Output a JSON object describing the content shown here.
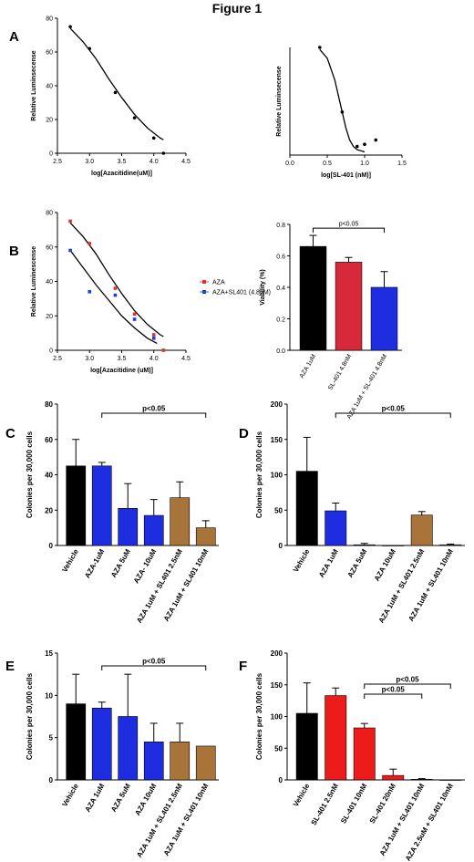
{
  "figure": {
    "title": "Figure 1"
  },
  "panel_letters": [
    "A",
    "B",
    "C",
    "D",
    "E",
    "F"
  ],
  "chart_data": [
    {
      "id": "A1",
      "type": "scatter",
      "xlabel": "log[Azacitidine(uM)]",
      "ylabel": "Relative Luminsecense",
      "xlim": [
        2.5,
        4.5
      ],
      "ylim": [
        0,
        80
      ],
      "xticks": [
        "2.5",
        "3.0",
        "3.5",
        "4.0",
        "4.5"
      ],
      "yticks": [
        "0",
        "20",
        "40",
        "60",
        "80"
      ],
      "series": [
        {
          "color": "#000000",
          "x": [
            2.7,
            3.0,
            3.4,
            3.7,
            4.0,
            4.15
          ],
          "y": [
            75,
            62,
            36,
            21,
            9,
            0
          ],
          "fit_x": [
            2.7,
            2.9,
            3.1,
            3.3,
            3.5,
            3.7,
            3.9,
            4.1,
            4.15
          ],
          "fit_y": [
            74,
            66,
            56,
            44,
            33,
            23,
            15,
            9,
            8
          ]
        }
      ]
    },
    {
      "id": "A2",
      "type": "scatter",
      "xlabel": "log[SL-401 (nM)]",
      "ylabel": "Relative Luminsecense",
      "xlim": [
        0.0,
        1.5
      ],
      "ylim": [
        0,
        100
      ],
      "xticks": [
        "0.0",
        "0.5",
        "1.0",
        "1.5"
      ],
      "series": [
        {
          "color": "#000000",
          "x": [
            0.4,
            0.7,
            0.9,
            1.0,
            1.15
          ],
          "y": [
            100,
            40,
            8,
            10,
            14
          ],
          "fit_x": [
            0.4,
            0.5,
            0.6,
            0.65,
            0.7,
            0.75,
            0.8,
            0.85,
            0.9,
            1.0
          ],
          "fit_y": [
            98,
            90,
            70,
            55,
            40,
            25,
            14,
            8,
            5,
            3
          ]
        }
      ]
    },
    {
      "id": "B1",
      "type": "scatter",
      "xlabel": "log[Azacitidine (uM)]",
      "ylabel": "Relative Luminescense",
      "xlim": [
        2.5,
        4.5
      ],
      "ylim": [
        0,
        80
      ],
      "xticks": [
        "2.5",
        "3.0",
        "3.5",
        "4.0",
        "4.5"
      ],
      "yticks": [
        "0",
        "20",
        "40",
        "60",
        "80"
      ],
      "legend": [
        "AZA",
        "AZA+SL401 (4.8nM)"
      ],
      "series": [
        {
          "name": "AZA",
          "color": "#e03030",
          "x": [
            2.7,
            3.0,
            3.4,
            3.7,
            4.0,
            4.15
          ],
          "y": [
            75,
            62,
            36,
            21,
            9,
            0
          ],
          "fit_x": [
            2.7,
            2.9,
            3.1,
            3.3,
            3.5,
            3.7,
            3.9,
            4.1,
            4.15
          ],
          "fit_y": [
            74,
            66,
            56,
            44,
            33,
            23,
            15,
            9,
            8
          ]
        },
        {
          "name": "AZA+SL401 (4.8nM)",
          "color": "#2040d0",
          "x": [
            2.7,
            3.0,
            3.4,
            3.7,
            4.0
          ],
          "y": [
            58,
            34,
            32,
            18,
            7
          ],
          "fit_x": [
            2.7,
            2.9,
            3.1,
            3.3,
            3.5,
            3.7,
            3.9,
            4.05
          ],
          "fit_y": [
            58,
            48,
            38,
            29,
            20,
            13,
            7,
            4
          ]
        }
      ]
    },
    {
      "id": "B2",
      "type": "bar",
      "ylabel": "Viability (%)",
      "ylim": [
        0,
        0.8
      ],
      "yticks": [
        "0.0",
        "0.2",
        "0.4",
        "0.6",
        "0.8"
      ],
      "categories": [
        "AZA 1uM",
        "SL-401 4.8nM",
        "AZA 1uM + SL-401 4.8nM"
      ],
      "values": [
        0.66,
        0.56,
        0.4
      ],
      "errors": [
        0.07,
        0.03,
        0.1
      ],
      "colors": [
        "#000000",
        "#d62a3a",
        "#1f2de0"
      ],
      "annotations": [
        {
          "text": "p<0.05",
          "from": 0,
          "to": 2
        }
      ]
    },
    {
      "id": "C",
      "type": "bar",
      "ylabel": "Colonies per 30,000 cells",
      "ylim": [
        0,
        80
      ],
      "yticks": [
        "0",
        "20",
        "40",
        "60",
        "80"
      ],
      "categories": [
        "Vehicle",
        "AZA-1uM",
        "AZA 5uM",
        "AZA- 10uM",
        "AZA 1uM + SL401 2.5nM",
        "AZA 1uM + SL401 10nM"
      ],
      "values": [
        45,
        45,
        21,
        17,
        27,
        10
      ],
      "errors": [
        15,
        2,
        14,
        9,
        9,
        4
      ],
      "colors": [
        "#000000",
        "#1f2de0",
        "#1f2de0",
        "#1f2de0",
        "#a8743a",
        "#a8743a"
      ],
      "annotations": [
        {
          "text": "p<0.05",
          "from": 1,
          "to": 5
        }
      ]
    },
    {
      "id": "D",
      "type": "bar",
      "ylabel": "Colonies per 30,000 cells",
      "ylim": [
        0,
        200
      ],
      "yticks": [
        "0",
        "50",
        "100",
        "150",
        "200"
      ],
      "categories": [
        "Vehicle",
        "AZA 1uM",
        "AZA 5uM",
        "AZA 10uM",
        "AZA 1uM + SL401 2.5nM",
        "AZA 1uM + SL401 10nM"
      ],
      "values": [
        105,
        49,
        1,
        0,
        43,
        1
      ],
      "errors": [
        48,
        11,
        2,
        0,
        5,
        1
      ],
      "colors": [
        "#000000",
        "#1f2de0",
        "#1f2de0",
        "#1f2de0",
        "#a8743a",
        "#a8743a"
      ],
      "annotations": [
        {
          "text": "p<0.05",
          "from": 1,
          "to": 5
        }
      ]
    },
    {
      "id": "E",
      "type": "bar",
      "ylabel": "Colonies per 30,000 cells",
      "ylim": [
        0,
        15
      ],
      "yticks": [
        "0",
        "5",
        "10",
        "15"
      ],
      "categories": [
        "Vehicle",
        "AZA 1uM",
        "AZA 5uM",
        "AZA 10uM",
        "AZA 1uM + SL401 2.5nM",
        "AZA 1uM + SL401 10nM"
      ],
      "values": [
        9.0,
        8.5,
        7.5,
        4.5,
        4.5,
        4.0
      ],
      "errors": [
        3.5,
        0.7,
        5.0,
        2.2,
        2.2,
        0
      ],
      "colors": [
        "#000000",
        "#1f2de0",
        "#1f2de0",
        "#1f2de0",
        "#a8743a",
        "#a8743a"
      ],
      "annotations": [
        {
          "text": "p<0.05",
          "from": 1,
          "to": 5
        }
      ]
    },
    {
      "id": "F",
      "type": "bar",
      "ylabel": "Colonies per 30,000 cells",
      "ylim": [
        0,
        200
      ],
      "yticks": [
        "0",
        "50",
        "100",
        "150",
        "200"
      ],
      "categories": [
        "Vehicle",
        "SL-401 2.5nM",
        "SL-401 10nM",
        "SL-401 20nM",
        "AZA 1uM + SL401 10nM",
        "AZA 2.5uM + SL401 10nM"
      ],
      "values": [
        105,
        133,
        82,
        7,
        1,
        0
      ],
      "errors": [
        48,
        12,
        7,
        10,
        1,
        0
      ],
      "colors": [
        "#000000",
        "#ee1b1b",
        "#ee1b1b",
        "#ee1b1b",
        "#a8743a",
        "#a8743a"
      ],
      "annotations": [
        {
          "text": "p<0.05",
          "from": 2,
          "to": 4
        },
        {
          "text": "p<0.05",
          "from": 2,
          "to": 5
        }
      ]
    }
  ]
}
